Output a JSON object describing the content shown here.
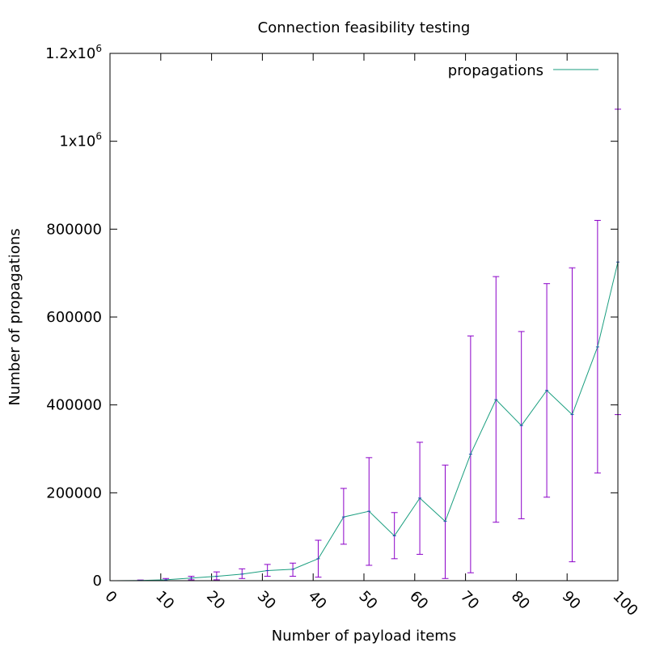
{
  "chart_data": {
    "type": "line",
    "title": "Connection feasibility testing",
    "xlabel": "Number of payload items",
    "ylabel": "Number of propagations",
    "xlim": [
      0,
      100
    ],
    "ylim": [
      0,
      1200000
    ],
    "x_ticks": [
      0,
      10,
      20,
      30,
      40,
      50,
      60,
      70,
      80,
      90,
      100
    ],
    "y_ticks": [
      {
        "value": 0,
        "label": "0"
      },
      {
        "value": 200000,
        "label": "200000"
      },
      {
        "value": 400000,
        "label": "400000"
      },
      {
        "value": 600000,
        "label": "600000"
      },
      {
        "value": 800000,
        "label": "800000"
      },
      {
        "value": 1000000,
        "label": "1x10",
        "exp": "6"
      },
      {
        "value": 1200000,
        "label": "1.2x10",
        "exp": "6"
      }
    ],
    "legend": {
      "position": "top-right"
    },
    "grid": false,
    "series": [
      {
        "name": "propagations",
        "color": "#1a9e7f",
        "error_color": "#8b00c8",
        "points": [
          {
            "x": 1,
            "y": 0,
            "lo": 0,
            "hi": 0
          },
          {
            "x": 6,
            "y": 500,
            "lo": 0,
            "hi": 1500
          },
          {
            "x": 11,
            "y": 2000,
            "lo": 0,
            "hi": 5000
          },
          {
            "x": 16,
            "y": 6000,
            "lo": 2000,
            "hi": 10000
          },
          {
            "x": 21,
            "y": 10000,
            "lo": 2000,
            "hi": 20000
          },
          {
            "x": 26,
            "y": 15000,
            "lo": 5000,
            "hi": 27000
          },
          {
            "x": 31,
            "y": 23000,
            "lo": 10000,
            "hi": 37000
          },
          {
            "x": 36,
            "y": 26000,
            "lo": 10000,
            "hi": 40000
          },
          {
            "x": 41,
            "y": 50000,
            "lo": 8000,
            "hi": 92000
          },
          {
            "x": 46,
            "y": 145000,
            "lo": 83000,
            "hi": 210000
          },
          {
            "x": 51,
            "y": 158000,
            "lo": 35000,
            "hi": 280000
          },
          {
            "x": 56,
            "y": 102000,
            "lo": 50000,
            "hi": 155000
          },
          {
            "x": 61,
            "y": 188000,
            "lo": 60000,
            "hi": 315000
          },
          {
            "x": 66,
            "y": 135000,
            "lo": 5000,
            "hi": 263000
          },
          {
            "x": 71,
            "y": 288000,
            "lo": 18000,
            "hi": 557000
          },
          {
            "x": 76,
            "y": 412000,
            "lo": 133000,
            "hi": 692000
          },
          {
            "x": 81,
            "y": 353000,
            "lo": 141000,
            "hi": 567000
          },
          {
            "x": 86,
            "y": 433000,
            "lo": 190000,
            "hi": 676000
          },
          {
            "x": 91,
            "y": 378000,
            "lo": 43000,
            "hi": 712000
          },
          {
            "x": 96,
            "y": 532000,
            "lo": 245000,
            "hi": 820000
          },
          {
            "x": 100,
            "y": 725000,
            "lo": 378000,
            "hi": 1073000
          }
        ]
      }
    ]
  }
}
